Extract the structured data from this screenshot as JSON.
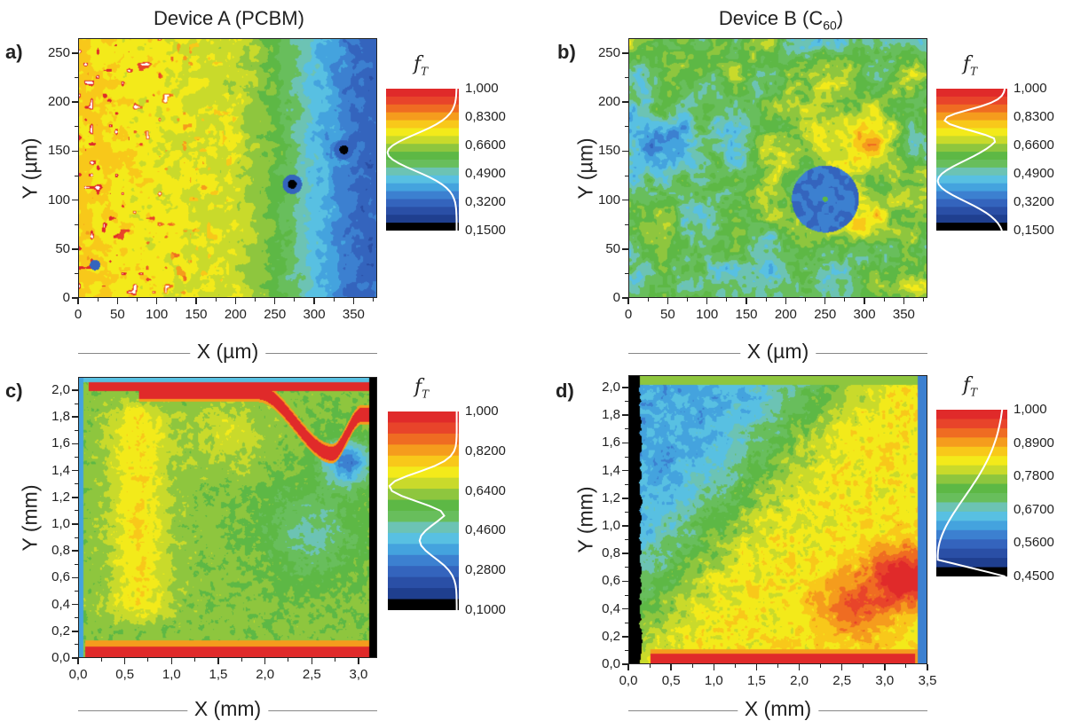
{
  "chart_data": [
    {
      "type": "heatmap",
      "panel": "a)",
      "title": "Device A (PCBM)",
      "xlabel": "X (µm)",
      "ylabel": "Y (µm)",
      "xlim": [
        0,
        380
      ],
      "ylim": [
        0,
        262
      ],
      "xticks": [
        "0",
        "50",
        "100",
        "150",
        "200",
        "250",
        "300",
        "350"
      ],
      "yticks": [
        "0",
        "50",
        "100",
        "150",
        "200",
        "250"
      ],
      "colorbar": {
        "label_main": "f",
        "label_sub": "T",
        "ticks": [
          "1,000",
          "0,8300",
          "0,6600",
          "0,4900",
          "0,3200",
          "0,1500"
        ]
      }
    },
    {
      "type": "heatmap",
      "panel": "b)",
      "title": "Device B (C",
      "title_sub": "60",
      "title_end": ")",
      "xlabel": "X (µm)",
      "ylabel": "Y (µm)",
      "xlim": [
        0,
        380
      ],
      "ylim": [
        0,
        262
      ],
      "xticks": [
        "0",
        "50",
        "100",
        "150",
        "200",
        "250",
        "300",
        "350"
      ],
      "yticks": [
        "0",
        "50",
        "100",
        "150",
        "200",
        "250"
      ],
      "colorbar": {
        "label_main": "f",
        "label_sub": "T",
        "ticks": [
          "1,000",
          "0,8300",
          "0,6600",
          "0,4900",
          "0,3200",
          "0,1500"
        ]
      }
    },
    {
      "type": "heatmap",
      "panel": "c)",
      "title": "",
      "xlabel": "X (mm)",
      "ylabel": "Y (mm)",
      "xlim": [
        0,
        3.2
      ],
      "ylim": [
        0,
        2.1
      ],
      "xticks": [
        "0,0",
        "0,5",
        "1,0",
        "1,5",
        "2,0",
        "2,5",
        "3,0"
      ],
      "yticks": [
        "0,0",
        "0,2",
        "0,4",
        "0,6",
        "0,8",
        "1,0",
        "1,2",
        "1,4",
        "1,6",
        "1,8",
        "2,0"
      ],
      "colorbar": {
        "label_main": "f",
        "label_sub": "T",
        "ticks": [
          "1,000",
          "0,8200",
          "0,6400",
          "0,4600",
          "0,2800",
          "0,1000"
        ]
      }
    },
    {
      "type": "heatmap",
      "panel": "d)",
      "title": "",
      "xlabel": "X (mm)",
      "ylabel": "Y (mm)",
      "xlim": [
        0,
        3.5
      ],
      "ylim": [
        0,
        2.05
      ],
      "xticks": [
        "0,0",
        "0,5",
        "1,0",
        "1,5",
        "2,0",
        "2,5",
        "3,0",
        "3,5"
      ],
      "yticks": [
        "0,0",
        "0,2",
        "0,4",
        "0,6",
        "0,8",
        "1,0",
        "1,2",
        "1,4",
        "1,6",
        "1,8",
        "2,0"
      ],
      "colorbar": {
        "label_main": "f",
        "label_sub": "T",
        "ticks": [
          "1,000",
          "0,8900",
          "0,7800",
          "0,6700",
          "0,5600",
          "0,4500"
        ]
      }
    }
  ],
  "colormap": [
    "#000000",
    "#1f3f8f",
    "#2a4fa6",
    "#3464bd",
    "#3c80d0",
    "#44a3de",
    "#58c0e2",
    "#6cc3b4",
    "#68be5c",
    "#5db845",
    "#8ec63e",
    "#c9da2b",
    "#f3ea1a",
    "#f8c81a",
    "#f59c1d",
    "#ef6c22",
    "#e8442a",
    "#e02a2a"
  ]
}
